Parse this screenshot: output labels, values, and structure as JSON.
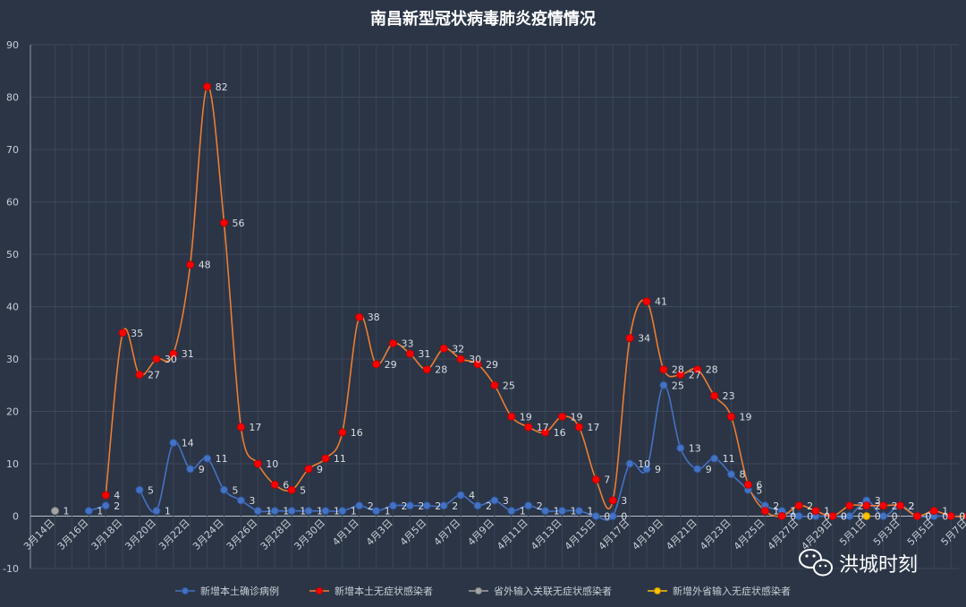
{
  "watermark": {
    "text": "洪城时刻"
  },
  "chart_data": {
    "type": "line",
    "title": "南昌新型冠状病毒肺炎疫情情况",
    "xlabel": "",
    "ylabel": "",
    "ylim": [
      -10,
      90
    ],
    "yticks": [
      -10,
      0,
      10,
      20,
      30,
      40,
      50,
      60,
      70,
      80,
      90
    ],
    "grid": true,
    "legend_position": "bottom",
    "categories": [
      "3月14日",
      "3月15日",
      "3月16日",
      "3月17日",
      "3月18日",
      "3月19日",
      "3月20日",
      "3月21日",
      "3月22日",
      "3月23日",
      "3月24日",
      "3月25日",
      "3月26日",
      "3月27日",
      "3月28日",
      "3月29日",
      "3月30日",
      "3月31日",
      "4月1日",
      "4月2日",
      "4月3日",
      "4月4日",
      "4月5日",
      "4月6日",
      "4月7日",
      "4月8日",
      "4月9日",
      "4月10日",
      "4月11日",
      "4月12日",
      "4月13日",
      "4月14日",
      "4月15日",
      "4月16日",
      "4月17日",
      "4月18日",
      "4月19日",
      "4月20日",
      "4月21日",
      "4月22日",
      "4月23日",
      "4月24日",
      "4月25日",
      "4月26日",
      "4月27日",
      "4月28日",
      "4月29日",
      "4月30日",
      "5月1日",
      "5月2日",
      "5月3日",
      "5月4日",
      "5月5日",
      "5月6日",
      "5月7日"
    ],
    "x_tick_labels": [
      "3月14日",
      "3月16日",
      "3月18日",
      "3月20日",
      "3月22日",
      "3月24日",
      "3月26日",
      "3月28日",
      "3月30日",
      "4月1日",
      "4月3日",
      "4月5日",
      "4月7日",
      "4月9日",
      "4月11日",
      "4月13日",
      "4月15日",
      "4月17日",
      "4月19日",
      "4月21日",
      "4月23日",
      "4月25日",
      "4月27日",
      "4月29日",
      "5月1日",
      "5月3日",
      "5月5日",
      "5月7日"
    ],
    "series": [
      {
        "name": "新增本土确诊病例",
        "color": "#4472c4",
        "values": [
          null,
          null,
          1,
          2,
          null,
          5,
          1,
          14,
          9,
          11,
          5,
          3,
          1,
          1,
          1,
          1,
          1,
          1,
          2,
          1,
          2,
          2,
          2,
          2,
          4,
          2,
          3,
          1,
          2,
          1,
          1,
          1,
          0,
          0,
          10,
          9,
          25,
          13,
          9,
          11,
          8,
          5,
          2,
          1,
          0,
          0,
          0,
          0,
          3,
          0,
          2,
          0,
          0,
          0,
          0
        ]
      },
      {
        "name": "新增本土无症状感染者",
        "color": "#ed7d31",
        "values": [
          null,
          null,
          null,
          4,
          35,
          27,
          30,
          31,
          48,
          82,
          56,
          17,
          10,
          6,
          5,
          9,
          11,
          16,
          38,
          29,
          33,
          31,
          28,
          32,
          30,
          29,
          25,
          19,
          17,
          16,
          19,
          17,
          7,
          3,
          34,
          41,
          28,
          27,
          28,
          23,
          19,
          6,
          1,
          0,
          2,
          1,
          0,
          2,
          2,
          2,
          2,
          0,
          1,
          0,
          0
        ]
      },
      {
        "name": "省外输入关联无症状感染者",
        "color": "#a5a5a5",
        "values": [
          1,
          null,
          null,
          null,
          null,
          null,
          null,
          null,
          null,
          null,
          null,
          null,
          null,
          null,
          null,
          null,
          null,
          null,
          null,
          null,
          null,
          null,
          null,
          null,
          null,
          null,
          null,
          null,
          null,
          null,
          null,
          null,
          null,
          null,
          null,
          null,
          null,
          null,
          null,
          null,
          null,
          null,
          null,
          null,
          null,
          null,
          null,
          null,
          null,
          null,
          null,
          null,
          null,
          null,
          null
        ]
      },
      {
        "name": "新增外省输入无症状感染者",
        "color": "#ffc000",
        "values": [
          null,
          null,
          null,
          null,
          null,
          null,
          null,
          null,
          null,
          null,
          null,
          null,
          null,
          null,
          null,
          null,
          null,
          null,
          null,
          null,
          null,
          null,
          null,
          null,
          null,
          null,
          null,
          null,
          null,
          null,
          null,
          null,
          null,
          null,
          null,
          null,
          null,
          null,
          null,
          null,
          null,
          null,
          null,
          null,
          null,
          null,
          null,
          null,
          0,
          null,
          null,
          null,
          null,
          null,
          null
        ]
      }
    ]
  }
}
